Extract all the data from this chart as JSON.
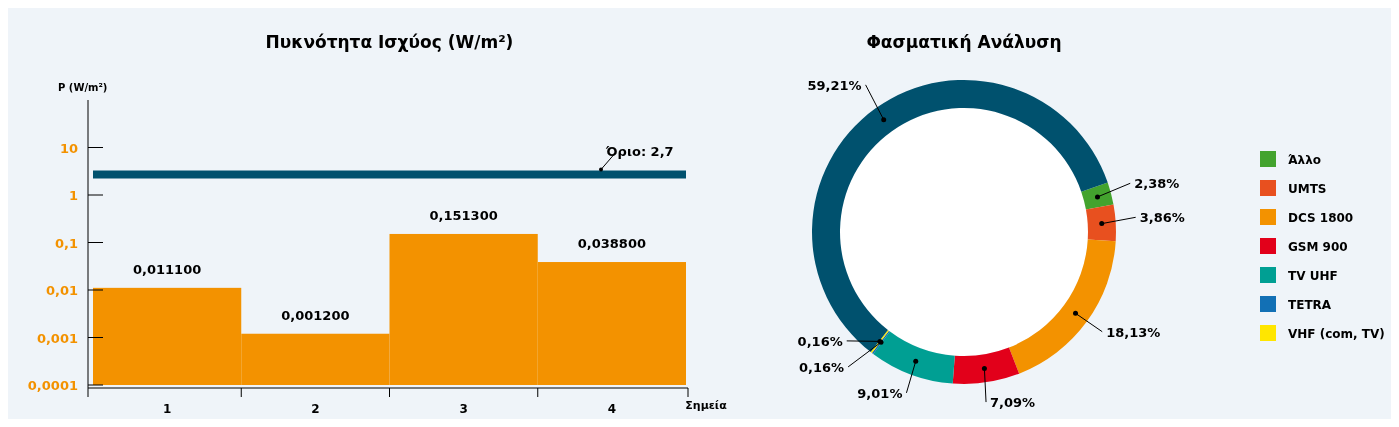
{
  "chart_data": [
    {
      "type": "bar",
      "title": "Πυκνότητα Ισχύος (W/m²)",
      "ylabel": "P (W/m²)",
      "xlabel": "Σημεία",
      "categories": [
        "1",
        "2",
        "3",
        "4"
      ],
      "values": [
        0.0111,
        0.0012,
        0.1513,
        0.0388
      ],
      "value_labels": [
        "0,011100",
        "0,001200",
        "0,151300",
        "0,038800"
      ],
      "color": "#f39200",
      "log": true,
      "ylim": [
        0.0001,
        100
      ],
      "yticks": [
        {
          "value": 0.0001,
          "label": "0,0001"
        },
        {
          "value": 0.001,
          "label": "0,001"
        },
        {
          "value": 0.01,
          "label": "0,01"
        },
        {
          "value": 0.1,
          "label": "0,1"
        },
        1,
        10
      ],
      "ref_lines": [
        {
          "axis": "y",
          "value": 2.7,
          "label": "Όριο: 2,7",
          "color": "#00516e"
        }
      ]
    },
    {
      "type": "donut",
      "title": "Φασματική Ανάλυση",
      "categories": [
        "Άλλο",
        "UMTS",
        "DCS 1800",
        "GSM 900",
        "TV UHF",
        "TETRA",
        "VHF (com, TV)",
        null
      ],
      "values": [
        2.38,
        3.86,
        18.13,
        7.09,
        9.01,
        0.16,
        0.16,
        59.21
      ],
      "colors": [
        "#43a32e",
        "#e8501f",
        "#f39200",
        "#e2001a",
        "#009f93",
        "#1270b5",
        "#ffe600",
        "#00516e"
      ],
      "value_labels": [
        "2,38%",
        "3,86%",
        "18,13%",
        "7,09%",
        "9,01%",
        "0,16%",
        "0,16%",
        "59,21%"
      ],
      "legend": "right"
    }
  ]
}
